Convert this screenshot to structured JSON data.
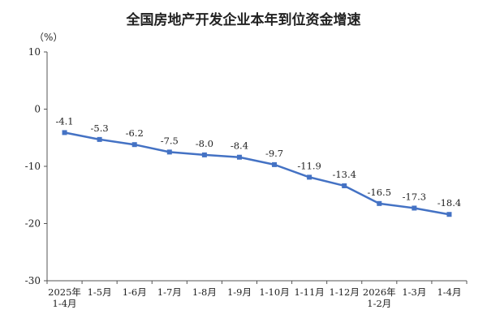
{
  "chart_data": {
    "type": "line",
    "title": "全国房地产开发企业本年到位资金增速",
    "ylabel": "（%）",
    "xlabel": "",
    "ylim": [
      -30,
      10
    ],
    "yticks": [
      10,
      0,
      -10,
      -20,
      -30
    ],
    "categories": [
      [
        "2025年",
        "1-4月"
      ],
      [
        "1-5月"
      ],
      [
        "1-6月"
      ],
      [
        "1-7月"
      ],
      [
        "1-8月"
      ],
      [
        "1-9月"
      ],
      [
        "1-10月"
      ],
      [
        "1-11月"
      ],
      [
        "1-12月"
      ],
      [
        "2026年",
        "1-2月"
      ],
      [
        "1-3月"
      ],
      [
        "1-4月"
      ]
    ],
    "series": [
      {
        "values": [
          -4.1,
          -5.3,
          -6.2,
          -7.5,
          -8.0,
          -8.4,
          -9.7,
          -11.9,
          -13.4,
          -16.5,
          -17.3,
          -18.4
        ]
      }
    ],
    "labels": [
      "-4.1",
      "-5.3",
      "-6.2",
      "-7.5",
      "-8.0",
      "-8.4",
      "-9.7",
      "-11.9",
      "-13.4",
      "-16.5",
      "-17.3",
      "-18.4"
    ],
    "line_color": "#4472C4",
    "grid": false
  }
}
